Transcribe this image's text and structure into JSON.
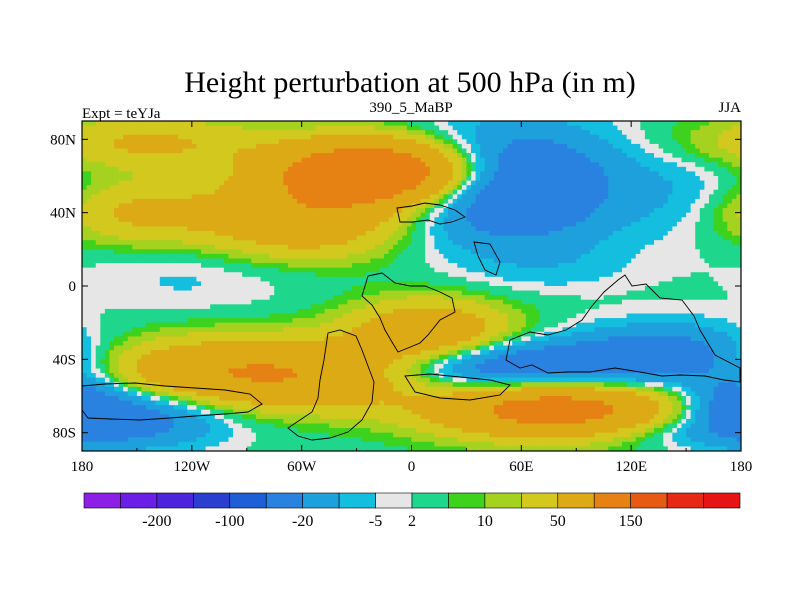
{
  "chart_data": {
    "type": "heatmap",
    "title": "Height perturbation at 500 hPa (in m)",
    "left_label": "Expt = teYJa",
    "center_label": "390_5_MaBP",
    "right_label": "JJA",
    "x_ticks": [
      "180",
      "120W",
      "60W",
      "0",
      "60E",
      "120E",
      "180"
    ],
    "x_tick_values": [
      -180,
      -120,
      -60,
      0,
      60,
      120,
      180
    ],
    "y_ticks": [
      "80N",
      "40N",
      "0",
      "40S",
      "80S"
    ],
    "y_tick_values": [
      80,
      40,
      0,
      -40,
      -80
    ],
    "xlim": [
      -180,
      180
    ],
    "ylim": [
      -90,
      90
    ],
    "colorbar": {
      "colors": [
        "#8c1ee6",
        "#6a1ee6",
        "#4b24dc",
        "#2a3ed0",
        "#1e5ed6",
        "#2a82e0",
        "#1ea0dc",
        "#14bede",
        "#e6e6e6",
        "#1ed68c",
        "#3cd21e",
        "#a5d21e",
        "#d2c81e",
        "#dcaa14",
        "#e68214",
        "#e65a14",
        "#e62814",
        "#e61414"
      ],
      "labels": [
        "-200",
        "-100",
        "-20",
        "-5",
        "2",
        "10",
        "50",
        "150"
      ]
    },
    "features": [
      {
        "lon": -20,
        "lat": 62,
        "amp": 95,
        "rx": 38,
        "ry": 12
      },
      {
        "lon": -60,
        "lat": 36,
        "amp": 38,
        "rx": 38,
        "ry": 14
      },
      {
        "lon": -150,
        "lat": 40,
        "amp": 22,
        "rx": 32,
        "ry": 12
      },
      {
        "lon": -145,
        "lat": 78,
        "amp": 22,
        "rx": 45,
        "ry": 10
      },
      {
        "lon": 55,
        "lat": 55,
        "amp": -45,
        "rx": 40,
        "ry": 22
      },
      {
        "lon": 150,
        "lat": 50,
        "amp": -8,
        "rx": 25,
        "ry": 18
      },
      {
        "lon": -120,
        "lat": 5,
        "amp": -6,
        "rx": 45,
        "ry": 14
      },
      {
        "lon": 80,
        "lat": 10,
        "amp": -5,
        "rx": 35,
        "ry": 10
      },
      {
        "lon": 10,
        "lat": -25,
        "amp": 38,
        "rx": 30,
        "ry": 12
      },
      {
        "lon": -80,
        "lat": -48,
        "amp": 55,
        "rx": 65,
        "ry": 13
      },
      {
        "lon": 80,
        "lat": -67,
        "amp": 70,
        "rx": 45,
        "ry": 11
      },
      {
        "lon": 50,
        "lat": -45,
        "amp": -45,
        "rx": 50,
        "ry": 10
      },
      {
        "lon": 140,
        "lat": -38,
        "amp": -30,
        "rx": 35,
        "ry": 12
      },
      {
        "lon": -160,
        "lat": -70,
        "amp": -35,
        "rx": 40,
        "ry": 12
      },
      {
        "lon": 178,
        "lat": -60,
        "amp": -20,
        "rx": 18,
        "ry": 12
      },
      {
        "lon": 130,
        "lat": -80,
        "amp": -8,
        "rx": 50,
        "ry": 6
      }
    ]
  }
}
